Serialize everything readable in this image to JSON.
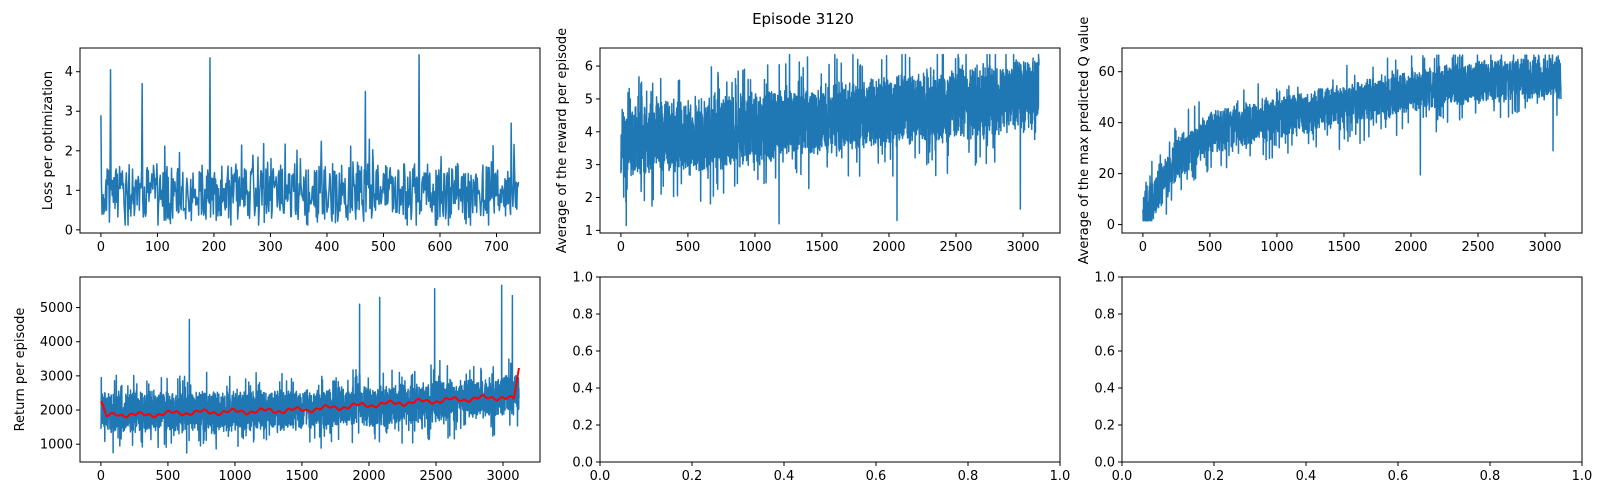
{
  "figure": {
    "suptitle": "Episode 3120",
    "background": "#ffffff"
  },
  "colors": {
    "series_main": "#1f77b4",
    "series_avg": "#ff0000",
    "axes": "#000000"
  },
  "chart_data": [
    {
      "id": "loss",
      "type": "line",
      "ylabel": "Loss per optimization",
      "xlabel": "",
      "xlim": [
        -37,
        777
      ],
      "ylim": [
        -0.08,
        4.6
      ],
      "xticks": [
        0,
        100,
        200,
        300,
        400,
        500,
        600,
        700
      ],
      "yticks": [
        0,
        1,
        2,
        3,
        4
      ],
      "series": [
        {
          "n": 740,
          "color": "#1f77b4",
          "gen": "noise",
          "seed": 11,
          "trend": [
            [
              0,
              0.95
            ],
            [
              740,
              0.95
            ]
          ],
          "spread": [
            0.9,
            0.45
          ],
          "clip": [
            0.12,
            4.45
          ],
          "spikes": [
            [
              0,
              2.9
            ],
            [
              17,
              4.05
            ],
            [
              73,
              3.7
            ],
            [
              193,
              4.35
            ],
            [
              468,
              3.5
            ],
            [
              563,
              4.43
            ],
            [
              726,
              2.7
            ]
          ],
          "legend": false
        }
      ]
    },
    {
      "id": "reward",
      "type": "line",
      "ylabel": "Average of the reward per episode",
      "xlabel": "",
      "xlim": [
        -156,
        3276
      ],
      "ylim": [
        0.92,
        6.55
      ],
      "xticks": [
        0,
        500,
        1000,
        1500,
        2000,
        2500,
        3000
      ],
      "yticks": [
        1,
        2,
        3,
        4,
        5,
        6
      ],
      "series": [
        {
          "n": 3120,
          "color": "#1f77b4",
          "gen": "noise",
          "seed": 23,
          "trend": [
            [
              0,
              3.7
            ],
            [
              1000,
              4.1
            ],
            [
              2000,
              4.6
            ],
            [
              3000,
              5.1
            ],
            [
              3120,
              5.5
            ]
          ],
          "spread": [
            1.3,
            0.6
          ],
          "clip": [
            1.15,
            6.35
          ],
          "spikes": [
            [
              40,
              1.15
            ],
            [
              1180,
              1.2
            ],
            [
              2060,
              1.3
            ],
            [
              2980,
              1.65
            ]
          ],
          "legend": false
        }
      ]
    },
    {
      "id": "qvalue",
      "type": "line",
      "ylabel": "Average of the max predicted Q value",
      "xlabel": "",
      "xlim": [
        -156,
        3276
      ],
      "ylim": [
        -3.3,
        69.3
      ],
      "xticks": [
        0,
        500,
        1000,
        1500,
        2000,
        2500,
        3000
      ],
      "yticks": [
        0,
        20,
        40,
        60
      ],
      "series": [
        {
          "n": 3120,
          "color": "#1f77b4",
          "gen": "noise",
          "seed": 37,
          "trend": [
            [
              0,
              3
            ],
            [
              100,
              12
            ],
            [
              250,
              25
            ],
            [
              500,
              36
            ],
            [
              1000,
              42
            ],
            [
              1500,
              47
            ],
            [
              2000,
              52
            ],
            [
              2500,
              56
            ],
            [
              3120,
              58
            ]
          ],
          "spread": [
            10,
            0.5
          ],
          "clip": [
            1.5,
            66.5
          ],
          "spikes": [
            [
              2070,
              19.5
            ],
            [
              3060,
              29
            ]
          ],
          "legend": false
        }
      ]
    },
    {
      "id": "return",
      "type": "line",
      "ylabel": "Return per episode",
      "xlabel": "",
      "xlim": [
        -156,
        3276
      ],
      "ylim": [
        478,
        5895
      ],
      "xticks": [
        0,
        500,
        1000,
        1500,
        2000,
        2500,
        3000
      ],
      "yticks": [
        1000,
        2000,
        3000,
        4000,
        5000
      ],
      "series": [
        {
          "n": 3120,
          "color": "#1f77b4",
          "gen": "noise",
          "seed": 51,
          "trend": [
            [
              0,
              1950
            ],
            [
              1000,
              1950
            ],
            [
              2000,
              2100
            ],
            [
              2500,
              2250
            ],
            [
              3120,
              2450
            ]
          ],
          "spread": [
            700,
            0.5
          ],
          "clip": [
            620,
            5650
          ],
          "spikes": [
            [
              660,
              4650
            ],
            [
              1930,
              5100
            ],
            [
              2080,
              5300
            ],
            [
              2490,
              5550
            ],
            [
              2990,
              5650
            ],
            [
              3070,
              5350
            ]
          ],
          "legend": false
        },
        {
          "n": 3120,
          "color": "#ff0000",
          "gen": "smooth",
          "seed": 7,
          "trend": [
            [
              0,
              2250
            ],
            [
              40,
              1800
            ],
            [
              120,
              1880
            ],
            [
              300,
              1850
            ],
            [
              600,
              1920
            ],
            [
              1000,
              1950
            ],
            [
              1500,
              2000
            ],
            [
              2000,
              2150
            ],
            [
              2500,
              2270
            ],
            [
              3000,
              2380
            ],
            [
              3080,
              2300
            ],
            [
              3120,
              3200
            ]
          ],
          "wobble": 90,
          "legend": false
        }
      ]
    },
    {
      "id": "empty1",
      "type": "line",
      "ylabel": "",
      "xlabel": "",
      "xlim": [
        0,
        1
      ],
      "ylim": [
        0,
        1
      ],
      "xtick_labels": [
        "0.0",
        "0.2",
        "0.4",
        "0.6",
        "0.8",
        "1.0"
      ],
      "xticks": [
        0,
        0.2,
        0.4,
        0.6,
        0.8,
        1.0
      ],
      "ytick_labels": [
        "0.0",
        "0.2",
        "0.4",
        "0.6",
        "0.8",
        "1.0"
      ],
      "yticks": [
        0,
        0.2,
        0.4,
        0.6,
        0.8,
        1.0
      ],
      "series": []
    },
    {
      "id": "empty2",
      "type": "line",
      "ylabel": "",
      "xlabel": "",
      "xlim": [
        0,
        1
      ],
      "ylim": [
        0,
        1
      ],
      "xtick_labels": [
        "0.0",
        "0.2",
        "0.4",
        "0.6",
        "0.8",
        "1.0"
      ],
      "xticks": [
        0,
        0.2,
        0.4,
        0.6,
        0.8,
        1.0
      ],
      "ytick_labels": [
        "0.0",
        "0.2",
        "0.4",
        "0.6",
        "0.8",
        "1.0"
      ],
      "yticks": [
        0,
        0.2,
        0.4,
        0.6,
        0.8,
        1.0
      ],
      "series": []
    }
  ]
}
